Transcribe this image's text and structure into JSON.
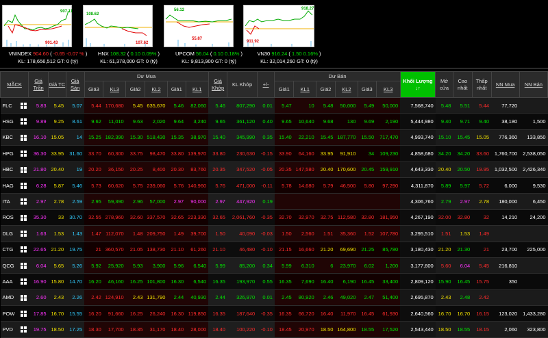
{
  "indices": [
    {
      "name": "VNINDEX",
      "value": "904.60",
      "change": "-0.65",
      "pct": "-0.07 %",
      "kl": "178,656,512",
      "gt": "0",
      "unit": "(tỷ)",
      "color": "#ff2b2b",
      "chart_hi": "907.11",
      "chart_lo": "901.43"
    },
    {
      "name": "HNX",
      "value": "108.32",
      "change": "0.10",
      "pct": "0.09%",
      "kl": "61,378,000",
      "gt": "0",
      "unit": "(tỷ)",
      "color": "#00e600",
      "chart_hi": "108.62",
      "chart_lo": "107.62"
    },
    {
      "name": "UPCOM",
      "value": "56.04",
      "change": "0.10",
      "pct": "0.18%",
      "kl": "9,813,900",
      "gt": "0",
      "unit": "(tỷ)",
      "color": "#00e600",
      "chart_hi": "56.12",
      "chart_lo": "55.87"
    },
    {
      "name": "VN30",
      "value": "916.24",
      "change": "1.50",
      "pct": "0.16%",
      "kl": "32,014,260",
      "gt": "0",
      "unit": "(tỷ)",
      "color": "#00e600",
      "chart_hi": "918.27",
      "chart_lo": "911.92"
    }
  ],
  "labels": {
    "kl": "KL:",
    "gt": "GT:"
  },
  "headers": {
    "mack": "MÃCK",
    "tran": "Giá Trần",
    "tc": "Giá TC",
    "san": "Giá Sàn",
    "du_mua": "Dư Mua",
    "du_ban": "Dư Bán",
    "gia3": "Giá3",
    "kl3": "KL3",
    "gia2": "Giá2",
    "kl2": "KL2",
    "gia1": "Giá1",
    "kl1": "KL1",
    "gia_khop": "Giá Khớp",
    "kl_khop": "KL Khớp",
    "pm": "+/-",
    "khoi_luong": "Khối Lượng",
    "mo_cua": "Mở cửa",
    "cao_nhat": "Cao nhất",
    "thap_nhat": "Thấp nhất",
    "nn_mua": "NN Mua",
    "nn_ban": "NN Bán"
  },
  "rows": [
    {
      "sym": "FLC",
      "tran": "5.83",
      "tc": "5.45",
      "san": "5.07",
      "b3": "5.44",
      "bk3": "170,680",
      "b2": "5.45",
      "bk2": "635,670",
      "b1": "5.46",
      "bk1": "82,060",
      "gk": "5.46",
      "klk": "807,290",
      "pm": "0.01",
      "s1": "5.47",
      "sk1": "10",
      "s2": "5.48",
      "sk2": "50,000",
      "s3": "5.49",
      "sk3": "50,000",
      "vol": "7,568,740",
      "mo": "5.48",
      "cao": "5.51",
      "thap": "5.44",
      "nnm": "77,720",
      "nnb": ""
    },
    {
      "sym": "HSG",
      "tran": "9.89",
      "tc": "9.25",
      "san": "8.61",
      "b3": "9.62",
      "bk3": "11,010",
      "b2": "9.63",
      "bk2": "2,020",
      "b1": "9.64",
      "bk1": "3,240",
      "gk": "9.65",
      "klk": "361,120",
      "pm": "0.40",
      "s1": "9.65",
      "sk1": "10,640",
      "s2": "9.68",
      "sk2": "130",
      "s3": "9.69",
      "sk3": "2,190",
      "vol": "5,444,980",
      "mo": "9.40",
      "cao": "9.71",
      "thap": "9.40",
      "nnm": "38,180",
      "nnb": "1,500"
    },
    {
      "sym": "KBC",
      "tran": "16.10",
      "tc": "15.05",
      "san": "14",
      "b3": "15.25",
      "bk3": "182,390",
      "b2": "15.30",
      "bk2": "518,430",
      "b1": "15.35",
      "bk1": "38,970",
      "gk": "15.40",
      "klk": "345,990",
      "pm": "0.35",
      "s1": "15.40",
      "sk1": "22,210",
      "s2": "15.45",
      "sk2": "187,770",
      "s3": "15.50",
      "sk3": "717,470",
      "vol": "4,993,740",
      "mo": "15.10",
      "cao": "15.45",
      "thap": "15.05",
      "nnm": "776,360",
      "nnb": "133,850"
    },
    {
      "sym": "HPG",
      "tran": "36.30",
      "tc": "33.95",
      "san": "31.60",
      "b3": "33.70",
      "bk3": "60,300",
      "b2": "33.75",
      "bk2": "98,470",
      "b1": "33.80",
      "bk1": "139,970",
      "gk": "33.80",
      "klk": "230,630",
      "pm": "-0.15",
      "s1": "33.90",
      "sk1": "64,160",
      "s2": "33.95",
      "sk2": "91,910",
      "s3": "34",
      "sk3": "109,230",
      "vol": "4,858,680",
      "mo": "34.20",
      "cao": "34.20",
      "thap": "33.60",
      "nnm": "1,760,700",
      "nnb": "2,538,050"
    },
    {
      "sym": "HBC",
      "tran": "21.80",
      "tc": "20.40",
      "san": "19",
      "b3": "20.20",
      "bk3": "36,150",
      "b2": "20.25",
      "bk2": "8,400",
      "b1": "20.30",
      "bk1": "83,760",
      "gk": "20.35",
      "klk": "347,520",
      "pm": "-0.05",
      "s1": "20.35",
      "sk1": "147,580",
      "s2": "20.40",
      "sk2": "170,600",
      "s3": "20.45",
      "sk3": "159,910",
      "vol": "4,643,330",
      "mo": "20.40",
      "cao": "20.50",
      "thap": "19.95",
      "nnm": "1,032,500",
      "nnb": "2,426,340"
    },
    {
      "sym": "HAG",
      "tran": "6.28",
      "tc": "5.87",
      "san": "5.46",
      "b3": "5.73",
      "bk3": "60,620",
      "b2": "5.75",
      "bk2": "239,060",
      "b1": "5.76",
      "bk1": "140,960",
      "gk": "5.76",
      "klk": "471,000",
      "pm": "-0.11",
      "s1": "5.78",
      "sk1": "14,680",
      "s2": "5.79",
      "sk2": "46,500",
      "s3": "5.80",
      "sk3": "97,290",
      "vol": "4,311,870",
      "mo": "5.89",
      "cao": "5.97",
      "thap": "5.72",
      "nnm": "6,000",
      "nnb": "9,530"
    },
    {
      "sym": "ITA",
      "tran": "2.97",
      "tc": "2.78",
      "san": "2.59",
      "b3": "2.95",
      "bk3": "59,390",
      "b2": "2.96",
      "bk2": "57,000",
      "b1": "2.97",
      "bk1": "90,000",
      "gk": "2.97",
      "klk": "447,920",
      "pm": "0.19",
      "s1": "",
      "sk1": "",
      "s2": "",
      "sk2": "",
      "s3": "",
      "sk3": "",
      "vol": "4,306,760",
      "mo": "2.79",
      "cao": "2.97",
      "thap": "2.78",
      "nnm": "180,000",
      "nnb": "6,450"
    },
    {
      "sym": "ROS",
      "tran": "35.30",
      "tc": "33",
      "san": "30.70",
      "b3": "32.55",
      "bk3": "278,960",
      "b2": "32.60",
      "bk2": "337,570",
      "b1": "32.65",
      "bk1": "223,330",
      "gk": "32.65",
      "klk": "2,061,760",
      "pm": "-0.35",
      "s1": "32.70",
      "sk1": "32,970",
      "s2": "32.75",
      "sk2": "112,580",
      "s3": "32.80",
      "sk3": "181,950",
      "vol": "4,267,190",
      "mo": "32.00",
      "cao": "32.80",
      "thap": "32",
      "nnm": "14,210",
      "nnb": "24,200"
    },
    {
      "sym": "DLG",
      "tran": "1.63",
      "tc": "1.53",
      "san": "1.43",
      "b3": "1.47",
      "bk3": "112,070",
      "b2": "1.48",
      "bk2": "209,750",
      "b1": "1.49",
      "bk1": "39,700",
      "gk": "1.50",
      "klk": "40,090",
      "pm": "-0.03",
      "s1": "1.50",
      "sk1": "2,560",
      "s2": "1.51",
      "sk2": "35,360",
      "s3": "1.52",
      "sk3": "107,780",
      "vol": "3,295,510",
      "mo": "1.51",
      "cao": "1.53",
      "thap": "1.49",
      "nnm": "",
      "nnb": ""
    },
    {
      "sym": "CTG",
      "tran": "22.65",
      "tc": "21.20",
      "san": "19.75",
      "b3": "21",
      "bk3": "360,570",
      "b2": "21.05",
      "bk2": "138,730",
      "b1": "21.10",
      "bk1": "61,260",
      "gk": "21.10",
      "klk": "46,480",
      "pm": "-0.10",
      "s1": "21.15",
      "sk1": "16,660",
      "s2": "21.20",
      "sk2": "69,690",
      "s3": "21.25",
      "sk3": "85,780",
      "vol": "3,180,430",
      "mo": "21.20",
      "cao": "21.30",
      "thap": "21",
      "nnm": "23,700",
      "nnb": "225,000"
    },
    {
      "sym": "QCG",
      "tran": "6.04",
      "tc": "5.65",
      "san": "5.26",
      "b3": "5.92",
      "bk3": "25,920",
      "b2": "5.93",
      "bk2": "3,900",
      "b1": "5.96",
      "bk1": "6,540",
      "gk": "5.99",
      "klk": "85,200",
      "pm": "0.34",
      "s1": "5.99",
      "sk1": "6,310",
      "s2": "6",
      "sk2": "23,970",
      "s3": "6.02",
      "sk3": "1,200",
      "vol": "3,177,600",
      "mo": "5.60",
      "cao": "6.04",
      "thap": "5.45",
      "nnm": "216,810",
      "nnb": ""
    },
    {
      "sym": "AAA",
      "tran": "16.90",
      "tc": "15.80",
      "san": "14.70",
      "b3": "16.20",
      "bk3": "46,160",
      "b2": "16.25",
      "bk2": "101,800",
      "b1": "16.30",
      "bk1": "6,540",
      "gk": "16.35",
      "klk": "193,970",
      "pm": "0.55",
      "s1": "16.35",
      "sk1": "7,690",
      "s2": "16.40",
      "sk2": "6,190",
      "s3": "16.45",
      "sk3": "33,400",
      "vol": "2,809,120",
      "mo": "15.90",
      "cao": "16.45",
      "thap": "15.75",
      "nnm": "350",
      "nnb": ""
    },
    {
      "sym": "AMD",
      "tran": "2.60",
      "tc": "2.43",
      "san": "2.26",
      "b3": "2.42",
      "bk3": "124,910",
      "b2": "2.43",
      "bk2": "131,790",
      "b1": "2.44",
      "bk1": "40,930",
      "gk": "2.44",
      "klk": "326,970",
      "pm": "0.01",
      "s1": "2.45",
      "sk1": "80,920",
      "s2": "2.46",
      "sk2": "49,020",
      "s3": "2.47",
      "sk3": "51,400",
      "vol": "2,695,870",
      "mo": "2.43",
      "cao": "2.48",
      "thap": "2.42",
      "nnm": "",
      "nnb": ""
    },
    {
      "sym": "POW",
      "tran": "17.85",
      "tc": "16.70",
      "san": "15.55",
      "b3": "16.20",
      "bk3": "91,660",
      "b2": "16.25",
      "bk2": "26,240",
      "b1": "16.30",
      "bk1": "119,850",
      "gk": "16.35",
      "klk": "187,640",
      "pm": "-0.35",
      "s1": "16.35",
      "sk1": "66,720",
      "s2": "16.40",
      "sk2": "11,970",
      "s3": "16.45",
      "sk3": "61,930",
      "vol": "2,640,560",
      "mo": "16.70",
      "cao": "16.70",
      "thap": "16.15",
      "nnm": "123,020",
      "nnb": "1,433,280"
    },
    {
      "sym": "PVD",
      "tran": "19.75",
      "tc": "18.50",
      "san": "17.25",
      "b3": "18.30",
      "bk3": "17,700",
      "b2": "18.35",
      "bk2": "31,170",
      "b1": "18.40",
      "bk1": "28,000",
      "gk": "18.40",
      "klk": "100,220",
      "pm": "-0.10",
      "s1": "18.45",
      "sk1": "20,970",
      "s2": "18.50",
      "sk2": "164,800",
      "s3": "18.55",
      "sk3": "17,520",
      "vol": "2,543,440",
      "mo": "18.50",
      "cao": "18.55",
      "thap": "18.15",
      "nnm": "2,060",
      "nnb": "323,800"
    }
  ]
}
